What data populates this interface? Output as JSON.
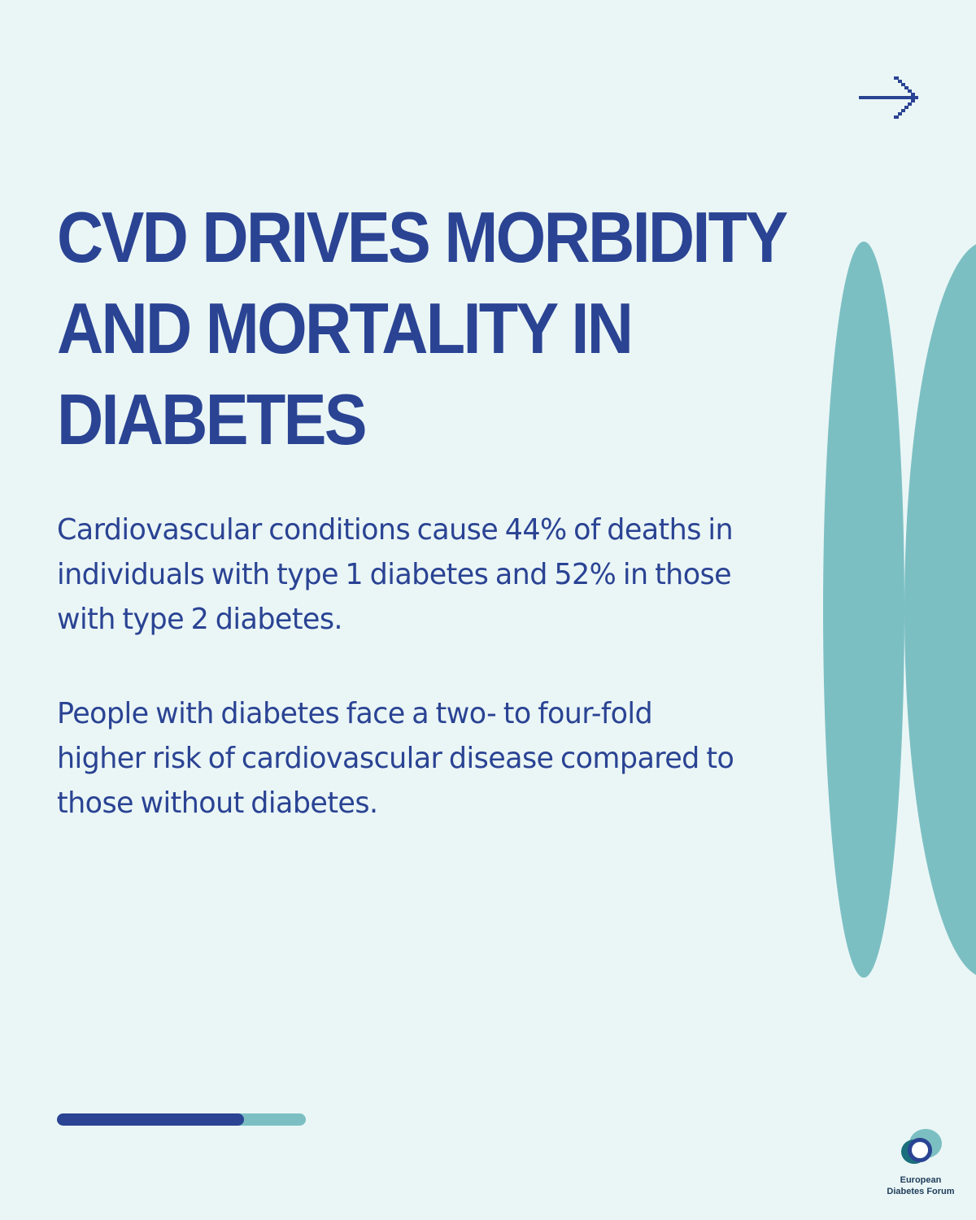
{
  "colors": {
    "background": "#eaf6f6",
    "brand_blue": "#2a4393",
    "teal": "#7cbfc3",
    "logo_dark_teal": "#1b6f7c",
    "logo_text": "#1e3d5a"
  },
  "nav": {
    "next_icon": "arrow-right-icon"
  },
  "headline": {
    "lines": [
      "CVD DRIVES MORBIDITY",
      "AND MORTALITY IN",
      "DIABETES"
    ]
  },
  "body": {
    "paragraph_1": [
      "Cardiovascular conditions cause 44% of deaths in",
      "individuals with type 1 diabetes and 52% in those",
      "with type 2 diabetes."
    ],
    "paragraph_2": [
      "People with diabetes face a two- to four-fold",
      "higher risk of cardiovascular disease compared to",
      "those without diabetes."
    ]
  },
  "progress": {
    "fraction": 0.75
  },
  "logo": {
    "line_1": "European",
    "line_2": "Diabetes Forum"
  }
}
